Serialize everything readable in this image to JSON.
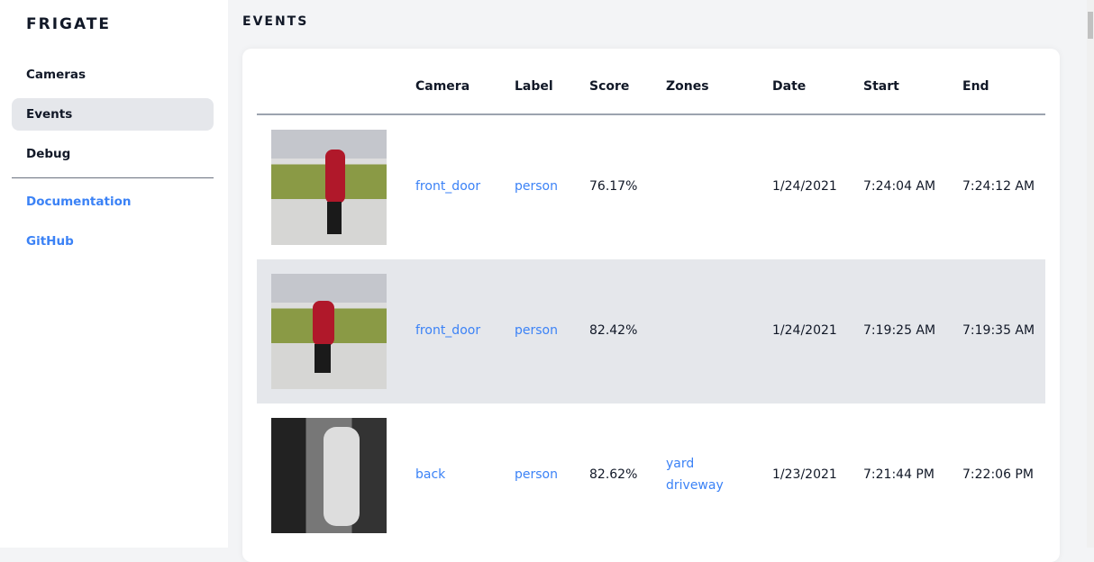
{
  "sidebar": {
    "brand": "FRIGATE",
    "items": [
      {
        "label": "Cameras"
      },
      {
        "label": "Events"
      },
      {
        "label": "Debug"
      }
    ],
    "links": [
      {
        "label": "Documentation"
      },
      {
        "label": "GitHub"
      }
    ]
  },
  "page": {
    "title": "EVENTS"
  },
  "table": {
    "headers": [
      "Camera",
      "Label",
      "Score",
      "Zones",
      "Date",
      "Start",
      "End"
    ],
    "rows": [
      {
        "camera": "front_door",
        "label": "person",
        "score": "76.17%",
        "zones": [
          "",
          ""
        ],
        "date": "1/24/2021",
        "start": "7:24:04 AM",
        "end": "7:24:12 AM"
      },
      {
        "camera": "front_door",
        "label": "person",
        "score": "82.42%",
        "zones": [
          "",
          ""
        ],
        "date": "1/24/2021",
        "start": "7:19:25 AM",
        "end": "7:19:35 AM"
      },
      {
        "camera": "back",
        "label": "person",
        "score": "82.62%",
        "zones": [
          "yard",
          "driveway"
        ],
        "date": "1/23/2021",
        "start": "7:21:44 PM",
        "end": "7:22:06 PM"
      }
    ]
  },
  "colors": {
    "accent": "#3b82f6",
    "active_bg": "#e5e7eb"
  }
}
